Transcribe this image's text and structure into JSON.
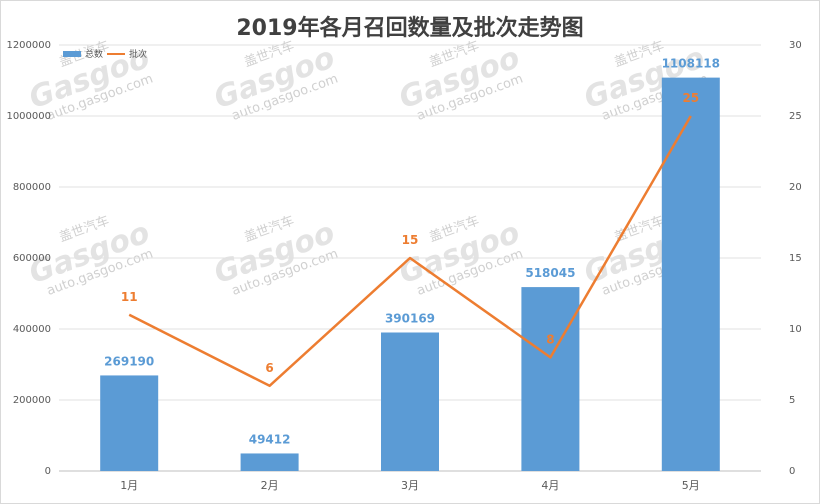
{
  "chart_data": {
    "type": "bar",
    "title": "2019年各月召回数量及批次走势图",
    "categories": [
      "1月",
      "2月",
      "3月",
      "4月",
      "5月"
    ],
    "series": [
      {
        "name": "总数",
        "type": "bar",
        "axis": "left",
        "color": "#5b9bd5",
        "values": [
          269190,
          49412,
          390169,
          518045,
          1108118
        ]
      },
      {
        "name": "批次",
        "type": "line",
        "axis": "right",
        "color": "#ed7d31",
        "values": [
          11,
          6,
          15,
          8,
          25
        ]
      }
    ],
    "y_left": {
      "min": 0,
      "max": 1200000,
      "ticks": [
        0,
        200000,
        400000,
        600000,
        800000,
        1000000,
        1200000
      ]
    },
    "y_right": {
      "min": 0,
      "max": 30,
      "ticks": [
        0,
        5,
        10,
        15,
        20,
        25,
        30
      ]
    },
    "legend": {
      "placement": "top-left",
      "items": [
        "总数",
        "批次"
      ]
    },
    "grid": true
  },
  "watermark": {
    "brand": "Gasgoo",
    "cn": "盖世汽车",
    "url": "auto.gasgoo.com"
  }
}
